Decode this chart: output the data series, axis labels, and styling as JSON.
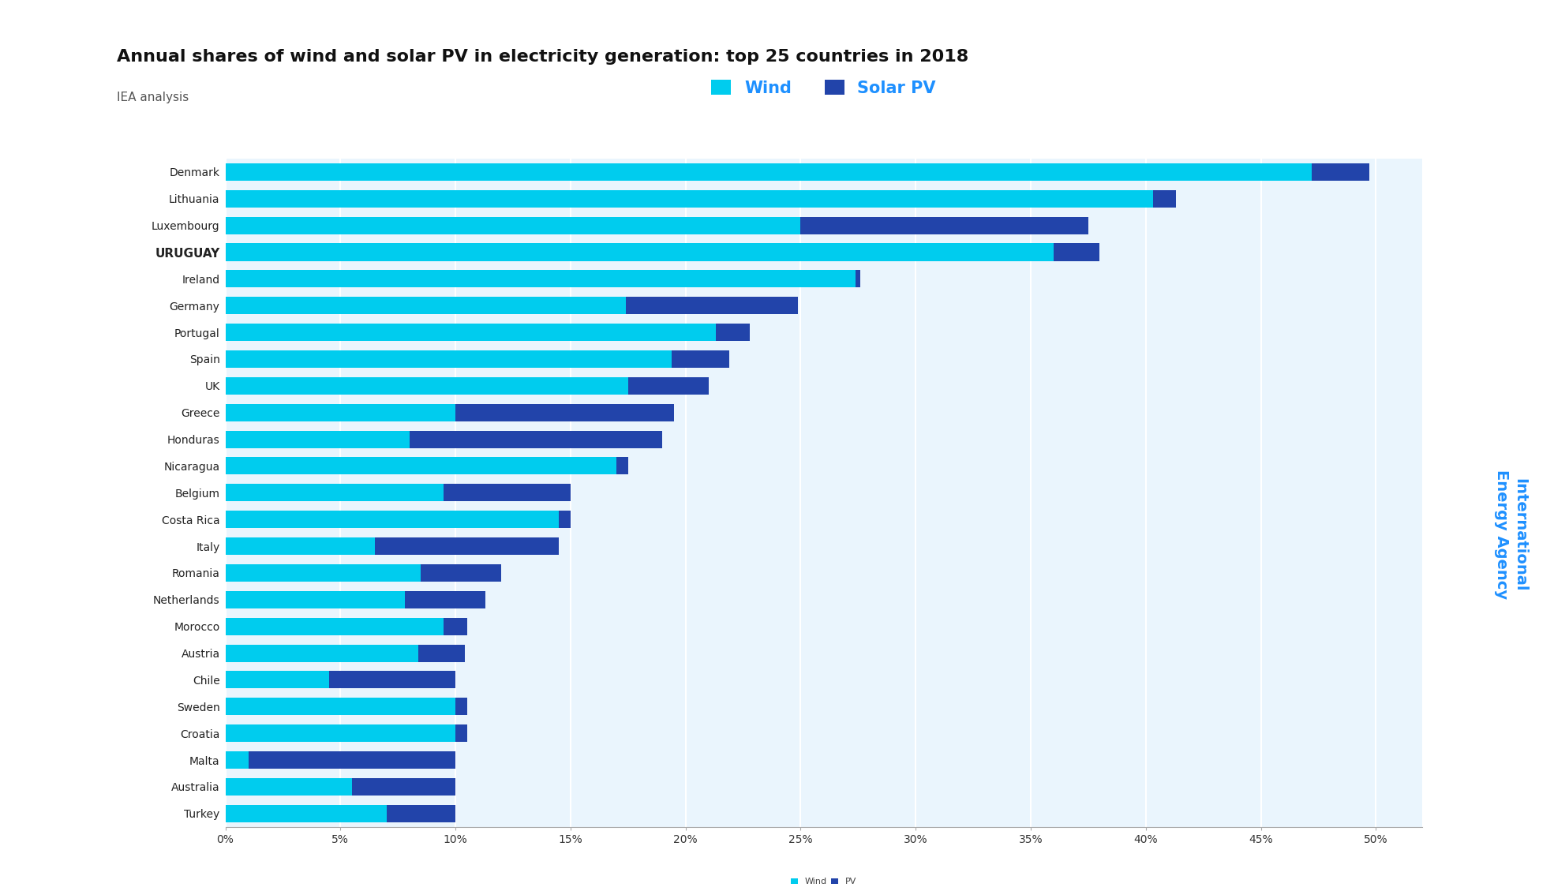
{
  "title": "Annual shares of wind and solar PV in electricity generation: top 25 countries in 2018",
  "subtitle": "IEA analysis",
  "wind_color": "#00CCEE",
  "solar_color": "#2244AA",
  "fig_bg_color": "#FFFFFF",
  "chart_bg_color": "#EAF5FD",
  "title_color": "#111111",
  "subtitle_color": "#555555",
  "accent_color": "#1155CC",
  "legend_wind_label": "Wind",
  "legend_solar_label": "Solar PV",
  "bottom_legend_wind": "Wind",
  "bottom_legend_solar": "PV",
  "watermark_line1": "International",
  "watermark_line2": "Energy Agency",
  "watermark_color": "#1E90FF",
  "countries": [
    "Denmark",
    "Lithuania",
    "Luxembourg",
    "URUGUAY",
    "Ireland",
    "Germany",
    "Portugal",
    "Spain",
    "UK",
    "Greece",
    "Honduras",
    "Nicaragua",
    "Belgium",
    "Costa Rica",
    "Italy",
    "Romania",
    "Netherlands",
    "Morocco",
    "Austria",
    "Chile",
    "Sweden",
    "Croatia",
    "Malta",
    "Australia",
    "Turkey"
  ],
  "bold_countries": [
    "URUGUAY"
  ],
  "wind_values": [
    47.2,
    40.3,
    25.0,
    36.0,
    27.4,
    17.4,
    21.3,
    19.4,
    17.5,
    10.0,
    8.0,
    17.0,
    9.5,
    14.5,
    6.5,
    8.5,
    7.8,
    9.5,
    8.4,
    4.5,
    10.0,
    10.0,
    1.0,
    5.5,
    7.0
  ],
  "solar_values": [
    2.5,
    1.0,
    12.5,
    2.0,
    0.2,
    7.5,
    1.5,
    2.5,
    3.5,
    9.5,
    11.0,
    0.5,
    5.5,
    0.5,
    8.0,
    3.5,
    3.5,
    1.0,
    2.0,
    5.5,
    0.5,
    0.5,
    9.0,
    4.5,
    3.0
  ],
  "xlim_max": 52,
  "xticks": [
    0,
    5,
    10,
    15,
    20,
    25,
    30,
    35,
    40,
    45,
    50
  ],
  "xtick_labels": [
    "0%",
    "5%",
    "10%",
    "15%",
    "20%",
    "25%",
    "30%",
    "35%",
    "40%",
    "45%",
    "50%"
  ],
  "title_fontsize": 16,
  "subtitle_fontsize": 11,
  "tick_fontsize": 10,
  "country_fontsize": 10,
  "bar_height": 0.65,
  "legend_fontsize": 15,
  "watermark_fontsize": 14
}
